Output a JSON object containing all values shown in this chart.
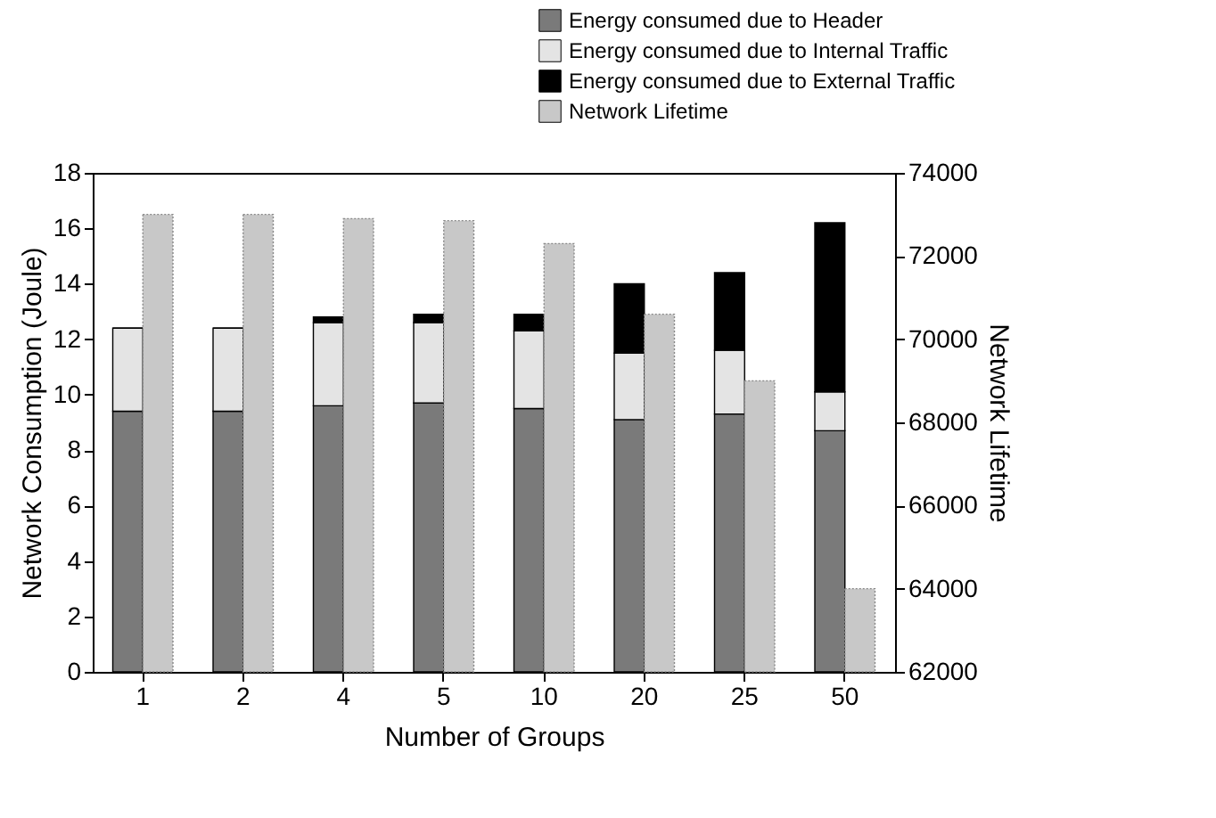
{
  "chart_data": {
    "type": "bar",
    "stacked": true,
    "xlabel": "Number of Groups",
    "ylabel": "Network Consumption (Joule)",
    "y2label": "Network Lifetime",
    "categories": [
      "1",
      "2",
      "4",
      "5",
      "10",
      "20",
      "25",
      "50"
    ],
    "series": [
      {
        "name": "Energy consumed due to Header",
        "color": "#7a7a7a",
        "values": [
          9.4,
          9.4,
          9.6,
          9.7,
          9.5,
          9.1,
          9.3,
          8.7
        ]
      },
      {
        "name": "Energy consumed due to Internal Traffic",
        "color": "#e4e4e4",
        "values": [
          3.0,
          3.0,
          3.0,
          2.9,
          2.8,
          2.4,
          2.3,
          1.4
        ]
      },
      {
        "name": "Energy consumed due to External Traffic",
        "color": "#000000",
        "values": [
          0,
          0,
          0.2,
          0.3,
          0.6,
          2.5,
          2.8,
          6.1
        ]
      },
      {
        "name": "Network Lifetime",
        "color": "#c8c8c8",
        "axis": "y2",
        "values": [
          73000,
          73000,
          72900,
          72850,
          72300,
          70600,
          69000,
          64000
        ]
      }
    ],
    "ylim": [
      0,
      18
    ],
    "yticks": [
      0,
      2,
      4,
      6,
      8,
      10,
      12,
      14,
      16,
      18
    ],
    "y2lim": [
      62000,
      74000
    ],
    "y2ticks": [
      62000,
      64000,
      66000,
      68000,
      70000,
      72000,
      74000
    ],
    "grid": false,
    "legend": "top right"
  }
}
